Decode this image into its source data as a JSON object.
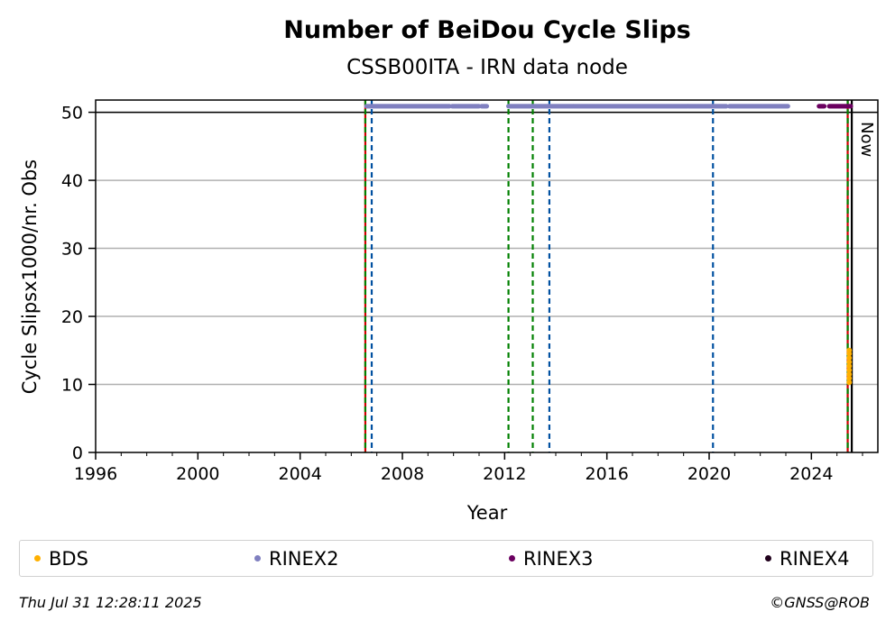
{
  "chart_data": {
    "type": "scatter",
    "title": "Number of BeiDou Cycle Slips",
    "subtitle": "CSSB00ITA - IRN data node",
    "xlabel": "Year",
    "ylabel": "Cycle Slipsx1000/nr. Obs",
    "xlim": [
      1996,
      2026.6
    ],
    "ylim": [
      0,
      51.8
    ],
    "x_ticks": [
      1996,
      2000,
      2004,
      2008,
      2012,
      2016,
      2020,
      2024
    ],
    "y_ticks": [
      0,
      10,
      20,
      30,
      40,
      50
    ],
    "grid": "y",
    "reference_line_y": 50,
    "now_label": "Now",
    "now_x": 2025.58,
    "series": [
      {
        "name": "RINEX2",
        "color": "#8080c0",
        "y": 50.9,
        "ranges": [
          [
            2006.6,
            2009.85
          ],
          [
            2009.95,
            2011.0
          ],
          [
            2011.1,
            2011.3
          ],
          [
            2012.15,
            2020.7
          ],
          [
            2020.8,
            2023.1
          ]
        ]
      },
      {
        "name": "RINEX3",
        "color": "#6b0060",
        "y": 50.9,
        "ranges": [
          [
            2024.3,
            2024.5
          ],
          [
            2024.7,
            2025.55
          ]
        ]
      },
      {
        "name": "BDS",
        "color": "#ffb000",
        "x": 2025.48,
        "values": [
          10.3,
          10.9,
          11.5,
          12.1,
          12.7,
          13.3,
          13.9,
          14.5,
          15.0
        ]
      },
      {
        "name": "RINEX4",
        "color": "#000000"
      }
    ],
    "vlines": [
      {
        "x": 2006.55,
        "color": "#cc0000",
        "style": "solid"
      },
      {
        "x": 2006.55,
        "color": "#008000",
        "style": "dashed"
      },
      {
        "x": 2006.8,
        "color": "#0050a0",
        "style": "dashed"
      },
      {
        "x": 2012.15,
        "color": "#008000",
        "style": "dashed"
      },
      {
        "x": 2013.1,
        "color": "#008000",
        "style": "dashed"
      },
      {
        "x": 2013.75,
        "color": "#0050a0",
        "style": "dashed"
      },
      {
        "x": 2020.15,
        "color": "#0050a0",
        "style": "dashed"
      },
      {
        "x": 2025.42,
        "color": "#cc0000",
        "style": "solid"
      },
      {
        "x": 2025.42,
        "color": "#008000",
        "style": "dashed"
      },
      {
        "x": 2025.58,
        "color": "#000000",
        "style": "solid"
      }
    ]
  },
  "legend": {
    "items": [
      {
        "label": "BDS",
        "color": "#ffb000"
      },
      {
        "label": "RINEX2",
        "color": "#8080c0"
      },
      {
        "label": "RINEX3",
        "color": "#6b0060"
      },
      {
        "label": "RINEX4",
        "color": "#20001c"
      }
    ]
  },
  "footer": {
    "timestamp": "Thu Jul 31 12:28:11 2025",
    "credit": "©GNSS@ROB"
  }
}
